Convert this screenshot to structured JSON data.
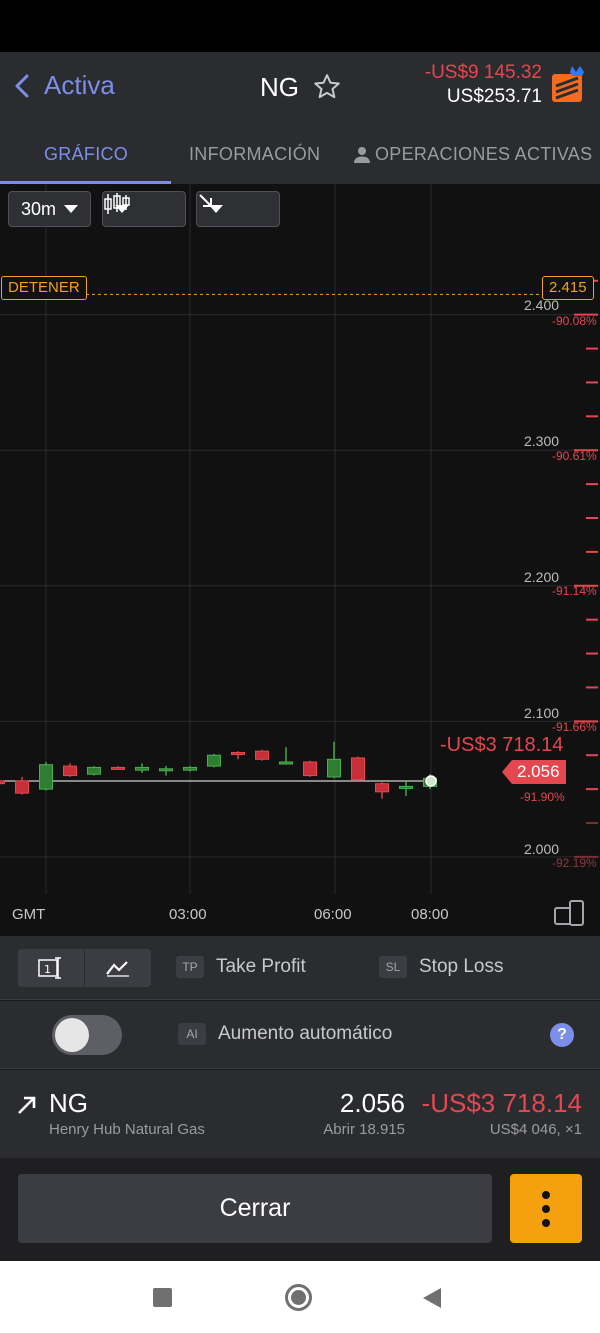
{
  "header": {
    "back_label": "Activa",
    "symbol": "NG",
    "pnl": "-US$9 145.32",
    "balance": "US$253.71"
  },
  "tabs": [
    {
      "label": "GRÁFICO",
      "active": true
    },
    {
      "label": "INFORMACIÓN",
      "active": false
    },
    {
      "label": "OPERACIONES ACTIVAS",
      "active": false
    }
  ],
  "chart_controls": {
    "timeframe": "30m",
    "chart_type_icon": "candlestick-icon",
    "direction_icon": "arrow-down-right-icon"
  },
  "chart_data": {
    "type": "candlestick",
    "timezone": "GMT",
    "x_ticks": [
      "03:00",
      "06:00",
      "08:00"
    ],
    "y_ticks": [
      {
        "value": "2.400",
        "pct": "-90.08%"
      },
      {
        "value": "2.300",
        "pct": "-90.61%"
      },
      {
        "value": "2.200",
        "pct": "-91.14%"
      },
      {
        "value": "2.100",
        "pct": "-91.66%"
      },
      {
        "value": "2.000",
        "pct": "-92.19%"
      }
    ],
    "ylim": [
      1.98,
      2.43
    ],
    "stop_label": "DETENER",
    "stop_price": "2.415",
    "stop_value": 2.415,
    "current_price": "2.056",
    "current_value": 2.056,
    "current_pct": "-91.90%",
    "current_pnl": "-US$3 718.14",
    "candles": [
      {
        "o": 2.056,
        "h": 2.058,
        "l": 2.053,
        "c": 2.054
      },
      {
        "o": 2.056,
        "h": 2.059,
        "l": 2.046,
        "c": 2.047
      },
      {
        "o": 2.05,
        "h": 2.07,
        "l": 2.049,
        "c": 2.068
      },
      {
        "o": 2.067,
        "h": 2.069,
        "l": 2.059,
        "c": 2.06
      },
      {
        "o": 2.061,
        "h": 2.067,
        "l": 2.06,
        "c": 2.066
      },
      {
        "o": 2.066,
        "h": 2.067,
        "l": 2.065,
        "c": 2.065
      },
      {
        "o": 2.064,
        "h": 2.069,
        "l": 2.062,
        "c": 2.066
      },
      {
        "o": 2.065,
        "h": 2.067,
        "l": 2.06,
        "c": 2.065
      },
      {
        "o": 2.064,
        "h": 2.067,
        "l": 2.063,
        "c": 2.066
      },
      {
        "o": 2.067,
        "h": 2.076,
        "l": 2.066,
        "c": 2.075
      },
      {
        "o": 2.077,
        "h": 2.078,
        "l": 2.072,
        "c": 2.076
      },
      {
        "o": 2.078,
        "h": 2.079,
        "l": 2.071,
        "c": 2.072
      },
      {
        "o": 2.07,
        "h": 2.081,
        "l": 2.068,
        "c": 2.07
      },
      {
        "o": 2.07,
        "h": 2.071,
        "l": 2.059,
        "c": 2.06
      },
      {
        "o": 2.059,
        "h": 2.085,
        "l": 2.058,
        "c": 2.072
      },
      {
        "o": 2.073,
        "h": 2.074,
        "l": 2.056,
        "c": 2.057
      },
      {
        "o": 2.054,
        "h": 2.055,
        "l": 2.043,
        "c": 2.048
      },
      {
        "o": 2.051,
        "h": 2.056,
        "l": 2.045,
        "c": 2.052
      },
      {
        "o": 2.052,
        "h": 2.061,
        "l": 2.05,
        "c": 2.058
      }
    ]
  },
  "tools": {
    "take_profit_chip": "TP",
    "take_profit_label": "Take Profit",
    "stop_loss_chip": "SL",
    "stop_loss_label": "Stop Loss",
    "auto_chip": "AI",
    "auto_label": "Aumento automático",
    "auto_enabled": false,
    "help_label": "?"
  },
  "position": {
    "symbol": "NG",
    "name": "Henry Hub Natural Gas",
    "price": "2.056",
    "pnl": "-US$3 718.14",
    "open": "Abrir 18.915",
    "size": "US$4 046, ×1"
  },
  "actions": {
    "close_label": "Cerrar"
  },
  "colors": {
    "accent": "#7b8fe8",
    "negative": "#e4474f",
    "positive": "#4caf50",
    "stop": "#f0a21c",
    "more_button": "#f5a10f"
  }
}
